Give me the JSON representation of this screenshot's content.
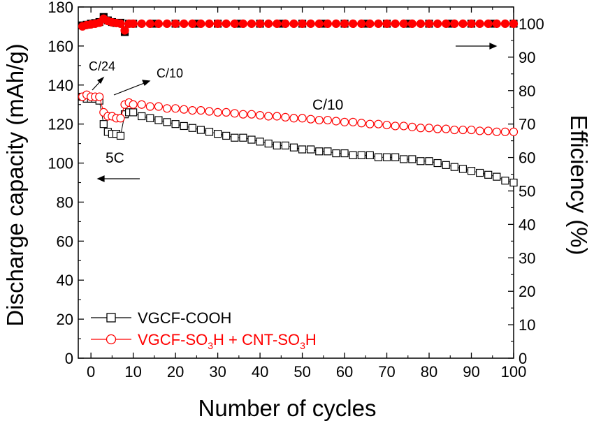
{
  "chart_data": {
    "type": "scatter",
    "xlabel": "Number of cycles",
    "ylabel": "Discharge capacity (mAh/g)",
    "y2label": "Efficiency (%)",
    "xlim": [
      -3,
      100
    ],
    "ylim": [
      0,
      180
    ],
    "y2lim": [
      0,
      105
    ],
    "xticks": [
      "0",
      "10",
      "20",
      "30",
      "40",
      "50",
      "60",
      "70",
      "80",
      "90",
      "100"
    ],
    "yticks": [
      "0",
      "20",
      "40",
      "60",
      "80",
      "100",
      "120",
      "140",
      "160",
      "180"
    ],
    "y2ticks": [
      "0",
      "10",
      "20",
      "30",
      "40",
      "50",
      "60",
      "70",
      "80",
      "90",
      "100"
    ],
    "annotations": {
      "c24": "C/24",
      "c10_left": "C/10",
      "c10_right": "C/10",
      "rate_5c": "5C"
    },
    "legend": {
      "cooh": "VGCF-COOH",
      "so3h_parts": [
        "VGCF-SO",
        "3",
        "H + CNT-SO",
        "3",
        "H"
      ]
    },
    "colors": {
      "cooh": "#000000",
      "so3h": "#ff0000"
    },
    "series": [
      {
        "name": "VGCF-COOH",
        "axis": "left",
        "color": "#000000",
        "marker": "square",
        "x": [
          -2,
          -1,
          0,
          1,
          2,
          3,
          4,
          5,
          6,
          7,
          8,
          9,
          10,
          12,
          14,
          16,
          18,
          20,
          22,
          24,
          26,
          28,
          30,
          32,
          34,
          36,
          38,
          40,
          42,
          44,
          46,
          48,
          50,
          52,
          54,
          56,
          58,
          60,
          62,
          64,
          66,
          68,
          70,
          72,
          74,
          76,
          78,
          80,
          82,
          84,
          86,
          88,
          90,
          92,
          94,
          96,
          98,
          100
        ],
        "y": [
          134,
          133,
          133,
          133,
          132,
          120,
          116,
          115,
          115,
          114,
          125,
          126,
          126,
          124,
          123,
          122,
          121,
          120,
          119,
          118,
          117,
          116,
          115,
          114,
          113,
          113,
          112,
          111,
          110,
          109,
          109,
          108,
          107,
          107,
          106,
          106,
          105,
          105,
          104,
          104,
          104,
          103,
          103,
          103,
          102,
          102,
          101,
          101,
          100,
          99,
          98,
          97,
          96,
          95,
          94,
          93,
          91,
          90
        ]
      },
      {
        "name": "VGCF-SO3H + CNT-SO3H",
        "axis": "left",
        "color": "#ff0000",
        "marker": "circle",
        "x": [
          -2,
          -1,
          0,
          1,
          2,
          3,
          4,
          5,
          6,
          7,
          8,
          9,
          10,
          12,
          14,
          16,
          18,
          20,
          22,
          24,
          26,
          28,
          30,
          32,
          34,
          36,
          38,
          40,
          42,
          44,
          46,
          48,
          50,
          52,
          54,
          56,
          58,
          60,
          62,
          64,
          66,
          68,
          70,
          72,
          74,
          76,
          78,
          80,
          82,
          84,
          86,
          88,
          90,
          92,
          94,
          96,
          98,
          100
        ],
        "y": [
          134,
          135,
          134,
          134,
          134,
          126,
          124,
          124,
          123,
          123,
          130,
          131,
          130,
          130,
          129,
          129,
          128,
          128,
          127.5,
          127,
          127,
          126.5,
          126,
          126,
          125.5,
          125,
          125,
          124.5,
          124,
          124,
          123.5,
          123,
          123,
          122.5,
          122,
          122,
          121.5,
          121,
          121,
          120.5,
          120,
          120,
          119.5,
          119,
          119,
          118.5,
          118,
          118,
          117.5,
          117.5,
          117,
          117,
          117,
          116.5,
          116.5,
          116,
          116,
          116
        ]
      },
      {
        "name": "VGCF-COOH efficiency",
        "axis": "right",
        "color": "#000000",
        "marker": "square",
        "x": [
          -2,
          -1,
          0,
          1,
          2,
          3,
          4,
          5,
          6,
          7,
          8,
          9,
          10,
          15,
          20,
          25,
          30,
          35,
          40,
          45,
          50,
          55,
          60,
          65,
          70,
          75,
          80,
          85,
          90,
          95,
          100
        ],
        "y": [
          99.5,
          99.7,
          100,
          100.2,
          100.5,
          102,
          101,
          100.5,
          100.2,
          100.3,
          97.5,
          100,
          100,
          100,
          100,
          100,
          100,
          100,
          100,
          100,
          100,
          100,
          100,
          100,
          100,
          100,
          100,
          100,
          100,
          100,
          100
        ]
      },
      {
        "name": "VGCF-SO3H + CNT-SO3H efficiency",
        "axis": "right",
        "color": "#ff0000",
        "marker": "circle",
        "x": [
          -2,
          -1,
          0,
          1,
          2,
          3,
          4,
          5,
          6,
          7,
          8,
          9,
          10,
          12,
          14,
          16,
          18,
          20,
          22,
          24,
          26,
          28,
          30,
          32,
          34,
          36,
          38,
          40,
          42,
          44,
          46,
          48,
          50,
          52,
          54,
          56,
          58,
          60,
          62,
          64,
          66,
          68,
          70,
          72,
          74,
          76,
          78,
          80,
          82,
          84,
          86,
          88,
          90,
          92,
          94,
          96,
          98,
          100
        ],
        "y": [
          99.2,
          99.6,
          99.8,
          100,
          100.3,
          101.5,
          100.8,
          100.4,
          100.2,
          100,
          98,
          100,
          100,
          100,
          100,
          100,
          100,
          100,
          100,
          100,
          100,
          100,
          100,
          100,
          100,
          100,
          100,
          100,
          100,
          100,
          100,
          100,
          100,
          100,
          100,
          100,
          100,
          100,
          100,
          100,
          100,
          100,
          100,
          100,
          100,
          100,
          100,
          100,
          100,
          100,
          100,
          100,
          100,
          100,
          100,
          100,
          100,
          100
        ]
      }
    ]
  }
}
